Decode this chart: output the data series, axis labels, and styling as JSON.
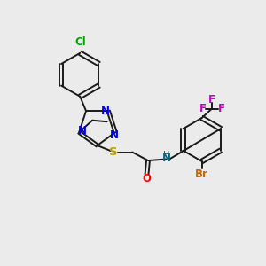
{
  "bg_color": "#ebebeb",
  "bond_color": "#1a1a1a",
  "N_color": "#0000ff",
  "S_color": "#b8a000",
  "O_color": "#ff0000",
  "Cl_color": "#00aa00",
  "Br_color": "#cc6600",
  "F_color": "#cc00cc",
  "H_color": "#006688",
  "font_size": 8.5,
  "lw": 1.4,
  "figsize": [
    3.0,
    3.0
  ],
  "dpi": 100,
  "xlim": [
    0,
    10
  ],
  "ylim": [
    0,
    10
  ]
}
